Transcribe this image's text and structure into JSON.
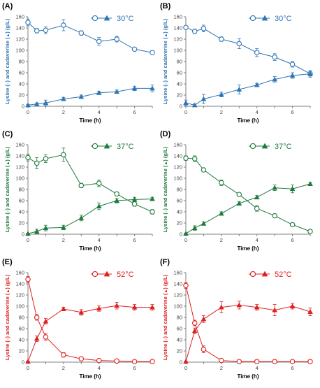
{
  "chart_data": [
    {
      "type": "line",
      "panel_label": "(A)",
      "temperature": "30°C",
      "color": "#2e75b6",
      "xlabel": "Time (h)",
      "ylabel": [
        "Lysine (",
        ") and ",
        "cadaverine",
        " (",
        ") (g/L)"
      ],
      "xlim": [
        0,
        7
      ],
      "ylim": [
        0,
        160
      ],
      "xticks": [
        0,
        2,
        4,
        6
      ],
      "yticks": [
        0,
        20,
        40,
        60,
        80,
        100,
        120,
        140,
        160
      ],
      "series": [
        {
          "marker": "circle-open",
          "x": [
            0,
            0.5,
            1,
            2,
            3,
            4,
            5,
            6,
            7
          ],
          "y": [
            150,
            135,
            136,
            145,
            131,
            116,
            120,
            102,
            96
          ],
          "err": [
            6,
            4,
            6,
            10,
            4,
            7,
            5,
            3,
            2
          ]
        },
        {
          "marker": "triangle-filled",
          "x": [
            0,
            0.5,
            1,
            2,
            3,
            4,
            5,
            6,
            7
          ],
          "y": [
            2,
            4,
            6,
            13,
            17,
            24,
            26,
            32,
            32
          ],
          "err": [
            1,
            2,
            5,
            3,
            3,
            3,
            3,
            4,
            6
          ]
        }
      ]
    },
    {
      "type": "line",
      "panel_label": "(B)",
      "temperature": "30°C",
      "color": "#2e75b6",
      "xlabel": "Time (h)",
      "ylabel": [
        "Lysine (",
        ") and ",
        "cadaverine",
        " (",
        ") (g/L)"
      ],
      "xlim": [
        0,
        7
      ],
      "ylim": [
        0,
        160
      ],
      "xticks": [
        0,
        2,
        4,
        6
      ],
      "yticks": [
        0,
        20,
        40,
        60,
        80,
        100,
        120,
        140,
        160
      ],
      "series": [
        {
          "marker": "circle-open",
          "x": [
            0,
            0.5,
            1,
            2,
            3,
            4,
            5,
            6,
            7
          ],
          "y": [
            141,
            134,
            139,
            120,
            112,
            96,
            88,
            75,
            58
          ],
          "err": [
            3,
            4,
            6,
            4,
            9,
            7,
            6,
            5,
            4
          ]
        },
        {
          "marker": "triangle-filled",
          "x": [
            0,
            0.5,
            1,
            2,
            3,
            4,
            5,
            6,
            7
          ],
          "y": [
            6,
            2,
            13,
            21,
            30,
            38,
            48,
            55,
            58
          ],
          "err": [
            5,
            2,
            8,
            4,
            8,
            3,
            5,
            5,
            6
          ]
        }
      ]
    },
    {
      "type": "line",
      "panel_label": "(C)",
      "temperature": "37°C",
      "color": "#1f7a3d",
      "xlabel": "Time (h)",
      "ylabel": [
        "Lysine (",
        ") and ",
        "cadaverine",
        " (",
        ") (g/L)"
      ],
      "xlim": [
        0,
        7
      ],
      "ylim": [
        0,
        160
      ],
      "xticks": [
        0,
        2,
        4,
        6
      ],
      "yticks": [
        0,
        20,
        40,
        60,
        80,
        100,
        120,
        140,
        160
      ],
      "series": [
        {
          "marker": "circle-open",
          "x": [
            0,
            0.5,
            1,
            2,
            3,
            4,
            5,
            6,
            7
          ],
          "y": [
            137,
            127,
            135,
            142,
            87,
            91,
            72,
            54,
            40
          ],
          "err": [
            6,
            10,
            7,
            12,
            4,
            6,
            3,
            4,
            4
          ]
        },
        {
          "marker": "triangle-filled",
          "x": [
            0,
            0.5,
            1,
            2,
            3,
            4,
            5,
            6,
            7
          ],
          "y": [
            1,
            5,
            11,
            12,
            29,
            50,
            60,
            62,
            63
          ],
          "err": [
            1,
            4,
            5,
            4,
            5,
            6,
            4,
            4,
            3
          ]
        }
      ]
    },
    {
      "type": "line",
      "panel_label": "(D)",
      "temperature": "37°C",
      "color": "#1f7a3d",
      "xlabel": "Time (h)",
      "ylabel": [
        "Lysine (",
        ") and ",
        "cadaverine",
        " (",
        ") (g/L)"
      ],
      "xlim": [
        0,
        7
      ],
      "ylim": [
        0,
        160
      ],
      "xticks": [
        0,
        2,
        4,
        6
      ],
      "yticks": [
        0,
        20,
        40,
        60,
        80,
        100,
        120,
        140,
        160
      ],
      "series": [
        {
          "marker": "circle-open",
          "x": [
            0,
            0.5,
            1,
            2,
            3,
            4,
            5,
            6,
            7
          ],
          "y": [
            136,
            135,
            115,
            92,
            71,
            46,
            33,
            17,
            5
          ],
          "err": [
            4,
            5,
            3,
            5,
            3,
            5,
            3,
            2,
            1
          ]
        },
        {
          "marker": "triangle-filled",
          "x": [
            0,
            0.5,
            1,
            2,
            3,
            4,
            5,
            6,
            7
          ],
          "y": [
            1,
            11,
            19,
            37,
            55,
            66,
            83,
            81,
            90
          ],
          "err": [
            1,
            4,
            3,
            3,
            3,
            3,
            5,
            7,
            2
          ]
        }
      ]
    },
    {
      "type": "line",
      "panel_label": "(E)",
      "temperature": "52°C",
      "color": "#e02020",
      "xlabel": "Time (h)",
      "ylabel": [
        "Lysine (",
        ") and ",
        "cadaverine",
        " (",
        ") (g/L)"
      ],
      "xlim": [
        0,
        7
      ],
      "ylim": [
        0,
        160
      ],
      "xticks": [
        0,
        2,
        4,
        6
      ],
      "yticks": [
        0,
        20,
        40,
        60,
        80,
        100,
        120,
        140,
        160
      ],
      "series": [
        {
          "marker": "circle-open",
          "x": [
            0,
            0.5,
            1,
            2,
            3,
            4,
            5,
            6,
            7
          ],
          "y": [
            148,
            80,
            45,
            13,
            6,
            3,
            2,
            1,
            1
          ],
          "err": [
            5,
            5,
            6,
            4,
            2,
            1,
            1,
            1,
            1
          ]
        },
        {
          "marker": "triangle-filled",
          "x": [
            0,
            0.5,
            1,
            2,
            3,
            4,
            5,
            6,
            7
          ],
          "y": [
            1,
            42,
            73,
            95,
            89,
            96,
            101,
            98,
            98
          ],
          "err": [
            1,
            5,
            5,
            3,
            5,
            5,
            6,
            5,
            5
          ]
        }
      ]
    },
    {
      "type": "line",
      "panel_label": "(F)",
      "temperature": "52°C",
      "color": "#e02020",
      "xlabel": "Time (h)",
      "ylabel": [
        "Lysine (",
        ") and ",
        "cadaverine",
        " (",
        ") (g/L)"
      ],
      "xlim": [
        0,
        7
      ],
      "ylim": [
        0,
        160
      ],
      "xticks": [
        0,
        2,
        4,
        6
      ],
      "yticks": [
        0,
        20,
        40,
        60,
        80,
        100,
        120,
        140,
        160
      ],
      "series": [
        {
          "marker": "circle-open",
          "x": [
            0,
            0.5,
            1,
            2,
            3,
            4,
            5,
            6,
            7
          ],
          "y": [
            137,
            70,
            23,
            3,
            1,
            1,
            1,
            1,
            1
          ],
          "err": [
            5,
            5,
            6,
            2,
            1,
            1,
            1,
            1,
            1
          ]
        },
        {
          "marker": "triangle-filled",
          "x": [
            0,
            0.5,
            1,
            2,
            3,
            4,
            5,
            6,
            7
          ],
          "y": [
            1,
            56,
            77,
            98,
            102,
            98,
            93,
            100,
            90
          ],
          "err": [
            1,
            5,
            6,
            10,
            7,
            5,
            10,
            5,
            7
          ]
        }
      ]
    }
  ]
}
